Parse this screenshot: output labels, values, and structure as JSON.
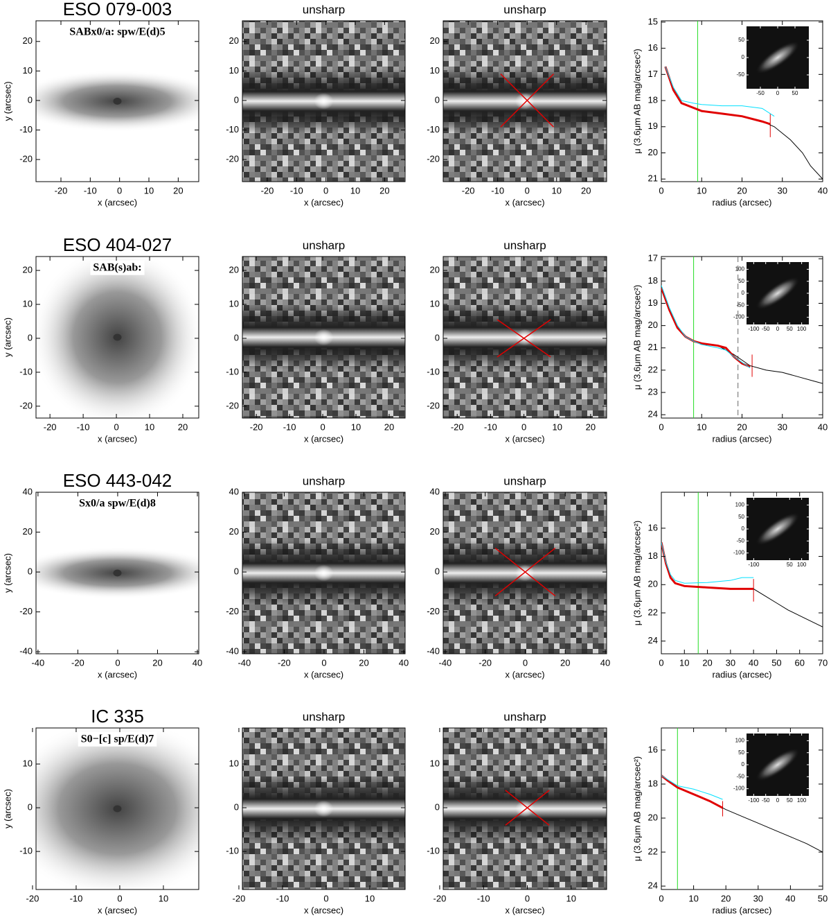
{
  "chart_data": [
    {
      "type": "image",
      "map": "galaxy",
      "title": "ESO 079-003",
      "label": "SABx0/a: spw/E(d)5",
      "xlabel": "x (arcsec)",
      "ylabel": "y (arcsec)",
      "xlim": [
        -28.5,
        27
      ],
      "ylim": [
        -27.5,
        27
      ],
      "xticks": [
        -20,
        -10,
        0,
        10,
        20
      ],
      "yticks": [
        -20,
        -10,
        0,
        10,
        20
      ]
    },
    {
      "type": "image",
      "map": "unsharp",
      "title": "unsharp",
      "xlabel": "x (arcsec)",
      "xlim": [
        -28.5,
        27
      ],
      "ylim": [
        -27.5,
        27
      ],
      "xticks": [
        -20,
        -10,
        0,
        10,
        20
      ],
      "yticks": [
        -20,
        -10,
        0,
        10,
        20
      ]
    },
    {
      "type": "image",
      "map": "unsharp",
      "title": "unsharp",
      "xlabel": "x (arcsec)",
      "xlim": [
        -28.5,
        27
      ],
      "ylim": [
        -27.5,
        27
      ],
      "xticks": [
        -20,
        -10,
        0,
        10,
        20
      ],
      "yticks": [
        -20,
        -10,
        0,
        10,
        20
      ],
      "series": [
        {
          "color": "#e00000",
          "x": [
            -9,
            9
          ],
          "values": [
            9,
            -9
          ]
        },
        {
          "color": "#e00000",
          "x": [
            -9,
            9
          ],
          "values": [
            -9,
            9
          ]
        }
      ]
    },
    {
      "type": "line",
      "xlabel": "radius (arcsec)",
      "ylabel": "μ (3.6μm AB mag/arcsec²)",
      "xlim": [
        0,
        40
      ],
      "ylim": [
        21.1,
        14.95
      ],
      "xticks": [
        0,
        10,
        20,
        30,
        40
      ],
      "yticks": [
        15,
        16,
        17,
        18,
        19,
        20,
        21
      ],
      "series": [
        {
          "color": "#000000",
          "x": [
            1,
            3,
            5,
            10,
            15,
            20,
            25,
            28,
            32,
            35,
            37,
            40
          ],
          "values": [
            16.7,
            17.6,
            18.1,
            18.4,
            18.5,
            18.6,
            18.8,
            19,
            19.5,
            20,
            20.5,
            21
          ]
        },
        {
          "color": "#e00000",
          "x": [
            1,
            3,
            5,
            10,
            15,
            20,
            25,
            27
          ],
          "values": [
            16.7,
            17.6,
            18.1,
            18.4,
            18.5,
            18.6,
            18.8,
            18.9
          ]
        },
        {
          "color": "#00e0ff",
          "x": [
            1,
            3,
            5,
            8,
            10,
            15,
            20,
            25,
            28
          ],
          "values": [
            16.7,
            17.5,
            18,
            18.1,
            18.15,
            18.2,
            18.2,
            18.3,
            18.6
          ]
        }
      ],
      "vlines": [
        {
          "x": 9,
          "color": "#22dd22"
        },
        {
          "x": 27,
          "color": "#e00000",
          "range": [
            18.5,
            19.4
          ]
        }
      ],
      "inset": {
        "xlim": [
          -90,
          90
        ],
        "ylim": [
          -90,
          90
        ],
        "xticks": [
          -50,
          0,
          50
        ],
        "yticks": [
          -50,
          0,
          50
        ]
      }
    },
    {
      "type": "image",
      "map": "galaxy",
      "title": "ESO 404-027",
      "label": "SAB(s)ab:",
      "xlabel": "x (arcsec)",
      "ylabel": "y (arcsec)",
      "xlim": [
        -24.2,
        24.8
      ],
      "ylim": [
        -23.5,
        24.1
      ],
      "xticks": [
        -20,
        -10,
        0,
        10,
        20
      ],
      "yticks": [
        -20,
        -10,
        0,
        10,
        20
      ]
    },
    {
      "type": "image",
      "map": "unsharp",
      "title": "unsharp",
      "xlabel": "x (arcsec)",
      "xlim": [
        -24.2,
        24.8
      ],
      "ylim": [
        -23.5,
        24.1
      ],
      "xticks": [
        -20,
        -10,
        0,
        10,
        20
      ],
      "yticks": [
        -20,
        -10,
        0,
        10,
        20
      ]
    },
    {
      "type": "image",
      "map": "unsharp",
      "title": "unsharp",
      "xlabel": "x (arcsec)",
      "xlim": [
        -24.2,
        24.8
      ],
      "ylim": [
        -23.5,
        24.1
      ],
      "xticks": [
        -20,
        -10,
        0,
        10,
        20
      ],
      "yticks": [
        -20,
        -10,
        0,
        10,
        20
      ],
      "series": [
        {
          "color": "#e00000",
          "x": [
            -8,
            8
          ],
          "values": [
            5.5,
            -5.5
          ]
        },
        {
          "color": "#e00000",
          "x": [
            -8,
            8
          ],
          "values": [
            -5.5,
            5.5
          ]
        }
      ]
    },
    {
      "type": "line",
      "xlabel": "radius (arcsec)",
      "ylabel": "μ (3.6μm AB mag/arcsec²)",
      "xlim": [
        0,
        40
      ],
      "ylim": [
        24.15,
        16.9
      ],
      "xticks": [
        0,
        10,
        20,
        30,
        40
      ],
      "yticks": [
        17,
        18,
        19,
        20,
        21,
        22,
        23,
        24
      ],
      "series": [
        {
          "color": "#000000",
          "x": [
            0,
            2,
            4,
            6,
            8,
            10,
            14,
            18,
            22,
            26,
            30,
            34,
            38,
            40
          ],
          "values": [
            18.3,
            19.3,
            20.1,
            20.5,
            20.7,
            20.85,
            20.9,
            21.3,
            21.8,
            22,
            22.1,
            22.3,
            22.5,
            22.6
          ]
        },
        {
          "color": "#e00000",
          "x": [
            0,
            2,
            4,
            6,
            8,
            10,
            12,
            14,
            16,
            18,
            20,
            22
          ],
          "values": [
            18.3,
            19.3,
            20.1,
            20.5,
            20.7,
            20.8,
            20.85,
            20.9,
            21,
            21.4,
            21.7,
            21.85
          ]
        },
        {
          "color": "#00e0ff",
          "x": [
            0,
            2,
            4,
            6,
            8,
            10,
            14,
            16,
            18,
            22
          ],
          "values": [
            18.2,
            19.2,
            20,
            20.5,
            20.7,
            20.85,
            21,
            21.1,
            21.4,
            21.9
          ]
        }
      ],
      "vlines": [
        {
          "x": 8,
          "color": "#22dd22"
        },
        {
          "x": 19,
          "color": "#666666",
          "dash": true
        },
        {
          "x": 22.5,
          "color": "#e00000",
          "range": [
            21.3,
            22.3
          ]
        }
      ],
      "inset": {
        "xlim": [
          -130,
          130
        ],
        "ylim": [
          -130,
          130
        ],
        "xticks": [
          -100,
          -50,
          0,
          50,
          100
        ],
        "yticks": [
          -100,
          -50,
          0,
          50,
          100
        ]
      }
    },
    {
      "type": "image",
      "map": "galaxy",
      "title": "ESO 443-042",
      "label": "Sx0/a spw/E(d)8",
      "xlabel": "x (arcsec)",
      "ylabel": "y (arcsec)",
      "xlim": [
        -41,
        40.7
      ],
      "ylim": [
        -41,
        40
      ],
      "xticks": [
        -40,
        -20,
        0,
        20,
        40
      ],
      "yticks": [
        -40,
        -20,
        0,
        20,
        40
      ]
    },
    {
      "type": "image",
      "map": "unsharp",
      "title": "unsharp",
      "xlabel": "x (arcsec)",
      "xlim": [
        -41,
        40.7
      ],
      "ylim": [
        -41,
        40
      ],
      "xticks": [
        -40,
        -20,
        0,
        20,
        40
      ],
      "yticks": [
        -40,
        -20,
        0,
        20,
        40
      ]
    },
    {
      "type": "image",
      "map": "unsharp",
      "title": "unsharp",
      "xlabel": "x (arcsec)",
      "xlim": [
        -41,
        40.7
      ],
      "ylim": [
        -41,
        40
      ],
      "xticks": [
        -40,
        -20,
        0,
        20,
        40
      ],
      "yticks": [
        -40,
        -20,
        0,
        20,
        40
      ],
      "series": [
        {
          "color": "#e00000",
          "x": [
            -15,
            15
          ],
          "values": [
            12,
            -12
          ]
        },
        {
          "color": "#e00000",
          "x": [
            -15,
            15
          ],
          "values": [
            -12,
            12
          ]
        }
      ]
    },
    {
      "type": "line",
      "xlabel": "radius (arcsec)",
      "ylabel": "μ (3.6μm AB mag/arcsec²)",
      "xlim": [
        0,
        70
      ],
      "ylim": [
        24.9,
        13.45
      ],
      "xticks": [
        0,
        10,
        20,
        30,
        40,
        50,
        60,
        70
      ],
      "yticks": [
        16,
        18,
        20,
        22,
        24
      ],
      "series": [
        {
          "color": "#000000",
          "x": [
            0,
            2,
            4,
            6,
            10,
            20,
            30,
            40,
            45,
            50,
            55,
            60,
            65,
            70
          ],
          "values": [
            17,
            18.5,
            19.5,
            19.9,
            20.1,
            20.2,
            20.3,
            20.3,
            20.8,
            21.3,
            21.8,
            22.2,
            22.6,
            23
          ]
        },
        {
          "color": "#e00000",
          "x": [
            0,
            2,
            4,
            6,
            10,
            20,
            30,
            40
          ],
          "values": [
            17,
            18.5,
            19.5,
            19.9,
            20.1,
            20.2,
            20.3,
            20.3
          ]
        },
        {
          "color": "#00e0ff",
          "x": [
            0,
            2,
            4,
            6,
            10,
            20,
            30,
            35,
            40
          ],
          "values": [
            17,
            18.4,
            19.3,
            19.7,
            19.9,
            19.85,
            19.7,
            19.5,
            19.5
          ]
        }
      ],
      "vlines": [
        {
          "x": 16,
          "color": "#22dd22"
        },
        {
          "x": 40,
          "color": "#e00000",
          "range": [
            19.6,
            21.2
          ]
        }
      ],
      "inset": {
        "xlim": [
          -130,
          130
        ],
        "ylim": [
          -130,
          130
        ],
        "xticks": [
          -100,
          50,
          100
        ],
        "yticks": [
          -100,
          -50,
          0,
          50,
          100
        ]
      }
    },
    {
      "type": "image",
      "map": "galaxy",
      "title": "IC  335",
      "label": "S0−[c] sp/E(d)7",
      "xlabel": "x (arcsec)",
      "ylabel": "y (arcsec)",
      "xlim": [
        -19.2,
        18.1
      ],
      "ylim": [
        -18.7,
        18.25
      ],
      "xticks": [
        -20,
        -10,
        0,
        10
      ],
      "yticks": [
        -10,
        0,
        10
      ]
    },
    {
      "type": "image",
      "map": "unsharp",
      "title": "unsharp",
      "xlabel": "x (arcsec)",
      "xlim": [
        -19.2,
        18.1
      ],
      "ylim": [
        -18.7,
        18.25
      ],
      "xticks": [
        -20,
        -10,
        0,
        10
      ],
      "yticks": [
        -10,
        0,
        10
      ]
    },
    {
      "type": "image",
      "map": "unsharp",
      "title": "unsharp",
      "xlabel": "x (arcsec)",
      "xlim": [
        -19.2,
        18.1
      ],
      "ylim": [
        -18.7,
        18.25
      ],
      "xticks": [
        -20,
        -10,
        0,
        10
      ],
      "yticks": [
        -10,
        0,
        10
      ],
      "series": [
        {
          "color": "#e00000",
          "x": [
            -5,
            5
          ],
          "values": [
            4,
            -4
          ]
        },
        {
          "color": "#e00000",
          "x": [
            -5,
            5
          ],
          "values": [
            -4,
            4
          ]
        }
      ]
    },
    {
      "type": "line",
      "xlabel": "radius (arcsec)",
      "ylabel": "μ (3.6μm AB mag/arcsec²)",
      "xlim": [
        0,
        50
      ],
      "ylim": [
        24.2,
        14.7
      ],
      "xticks": [
        0,
        10,
        20,
        30,
        40,
        50
      ],
      "yticks": [
        16,
        18,
        20,
        22,
        24
      ],
      "series": [
        {
          "color": "#000000",
          "x": [
            0,
            2,
            5,
            10,
            15,
            20,
            25,
            30,
            35,
            40,
            45,
            50
          ],
          "values": [
            17.5,
            17.8,
            18.2,
            18.6,
            19,
            19.5,
            19.9,
            20.3,
            20.7,
            21.1,
            21.5,
            22
          ]
        },
        {
          "color": "#e00000",
          "x": [
            0,
            2,
            5,
            10,
            15,
            19
          ],
          "values": [
            17.5,
            17.8,
            18.2,
            18.6,
            19,
            19.4
          ]
        },
        {
          "color": "#00e0ff",
          "x": [
            0,
            5,
            10,
            15,
            19
          ],
          "values": [
            17.5,
            18.1,
            18.3,
            18.6,
            18.9
          ]
        }
      ],
      "vlines": [
        {
          "x": 5,
          "color": "#22dd22"
        },
        {
          "x": 19,
          "color": "#e00000",
          "range": [
            19,
            19.9
          ]
        }
      ],
      "inset": {
        "xlim": [
          -130,
          130
        ],
        "ylim": [
          -130,
          130
        ],
        "xticks": [
          -100,
          -50,
          0,
          50,
          100
        ],
        "yticks": [
          -100,
          -50,
          0,
          50,
          100
        ]
      }
    }
  ]
}
